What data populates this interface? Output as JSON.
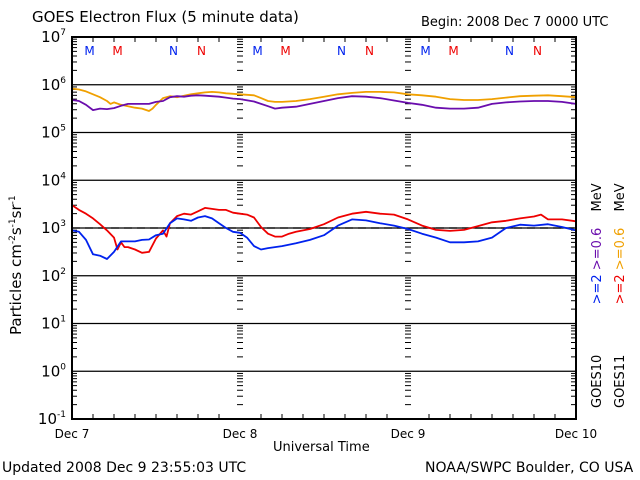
{
  "header": {
    "title": "GOES Electron Flux (5 minute data)",
    "begin": "Begin: 2008 Dec 7 0000 UTC"
  },
  "footer": {
    "updated": "Updated 2008 Dec  9 23:55:03 UTC",
    "source": "NOAA/SWPC Boulder, CO USA"
  },
  "legend": {
    "goes10": {
      "sat": "GOES10",
      "ch1": ">=2",
      "ch2": ">=0.6",
      "unit": "MeV",
      "color1": "#0022ee",
      "color2": "#6a0dad"
    },
    "goes11": {
      "sat": "GOES11",
      "ch1": ">=2",
      "ch2": ">=0.6",
      "unit": "MeV",
      "color1": "#ee0000",
      "color2": "#f0a000"
    }
  },
  "chart_data": {
    "type": "line",
    "title": "GOES Electron Flux (5 minute data)",
    "xlabel": "Universal Time",
    "ylabel": "Particles cm^-2 s^-1 sr^-1",
    "yscale": "log",
    "ylim_exp": [
      -1,
      7
    ],
    "xlim_hours": [
      0,
      72
    ],
    "x_tick_labels": [
      "Dec 7",
      "Dec 8",
      "Dec 9",
      "Dec 10"
    ],
    "y_tick_labels": [
      {
        "base": "10",
        "exp": "7"
      },
      {
        "base": "10",
        "exp": "6"
      },
      {
        "base": "10",
        "exp": "5"
      },
      {
        "base": "10",
        "exp": "4"
      },
      {
        "base": "10",
        "exp": "3"
      },
      {
        "base": "10",
        "exp": "2"
      },
      {
        "base": "10",
        "exp": "1"
      },
      {
        "base": "10",
        "exp": "0"
      },
      {
        "base": "10",
        "exp": "-1"
      }
    ],
    "threshold_exp": 3,
    "mn_markers": [
      {
        "label": "M",
        "hour": 2.5,
        "color": "#0022ee"
      },
      {
        "label": "M",
        "hour": 6.5,
        "color": "#ee0000"
      },
      {
        "label": "N",
        "hour": 14.5,
        "color": "#0022ee"
      },
      {
        "label": "N",
        "hour": 18.5,
        "color": "#ee0000"
      },
      {
        "label": "M",
        "hour": 26.5,
        "color": "#0022ee"
      },
      {
        "label": "M",
        "hour": 30.5,
        "color": "#ee0000"
      },
      {
        "label": "N",
        "hour": 38.5,
        "color": "#0022ee"
      },
      {
        "label": "N",
        "hour": 42.5,
        "color": "#ee0000"
      },
      {
        "label": "M",
        "hour": 50.5,
        "color": "#0022ee"
      },
      {
        "label": "M",
        "hour": 54.5,
        "color": "#ee0000"
      },
      {
        "label": "N",
        "hour": 62.5,
        "color": "#0022ee"
      },
      {
        "label": "N",
        "hour": 66.5,
        "color": "#ee0000"
      }
    ],
    "series": [
      {
        "name": "GOES11 >=0.6 MeV",
        "color": "#f0a000",
        "x": [
          0,
          1,
          2,
          3,
          4,
          5,
          5.5,
          6,
          7,
          8,
          9,
          10,
          11,
          11.5,
          12,
          13,
          14,
          15,
          16,
          17,
          18,
          19,
          20,
          21,
          22,
          23,
          24,
          26,
          27,
          28,
          29,
          30,
          32,
          34,
          36,
          38,
          40,
          42,
          44,
          46,
          48,
          50,
          52,
          54,
          56,
          58,
          60,
          62,
          64,
          66,
          68,
          70,
          72
        ],
        "log_y": [
          5.92,
          5.9,
          5.86,
          5.8,
          5.74,
          5.66,
          5.6,
          5.63,
          5.58,
          5.55,
          5.52,
          5.5,
          5.45,
          5.5,
          5.58,
          5.72,
          5.76,
          5.74,
          5.77,
          5.8,
          5.82,
          5.84,
          5.85,
          5.84,
          5.82,
          5.81,
          5.8,
          5.78,
          5.72,
          5.66,
          5.64,
          5.64,
          5.66,
          5.7,
          5.75,
          5.8,
          5.83,
          5.85,
          5.85,
          5.84,
          5.8,
          5.78,
          5.75,
          5.7,
          5.68,
          5.68,
          5.7,
          5.73,
          5.76,
          5.77,
          5.78,
          5.76,
          5.74
        ]
      },
      {
        "name": "GOES10 >=0.6 MeV",
        "color": "#6a0dad",
        "x": [
          0,
          1,
          2,
          3,
          4,
          5,
          6,
          7,
          8,
          9,
          10,
          11,
          12,
          13,
          14,
          15,
          16,
          17,
          18,
          19,
          20,
          21,
          22,
          23,
          24,
          26,
          28,
          29,
          30,
          32,
          34,
          36,
          38,
          40,
          42,
          44,
          46,
          48,
          50,
          52,
          54,
          56,
          58,
          60,
          62,
          64,
          66,
          68,
          70,
          72
        ],
        "log_y": [
          5.68,
          5.66,
          5.58,
          5.47,
          5.5,
          5.49,
          5.51,
          5.56,
          5.6,
          5.6,
          5.6,
          5.6,
          5.64,
          5.66,
          5.74,
          5.76,
          5.75,
          5.77,
          5.78,
          5.77,
          5.76,
          5.75,
          5.73,
          5.71,
          5.7,
          5.65,
          5.55,
          5.5,
          5.52,
          5.54,
          5.6,
          5.66,
          5.72,
          5.76,
          5.75,
          5.72,
          5.67,
          5.62,
          5.58,
          5.52,
          5.5,
          5.5,
          5.52,
          5.6,
          5.63,
          5.65,
          5.66,
          5.66,
          5.64,
          5.6
        ]
      },
      {
        "name": "GOES11 >=2 MeV",
        "color": "#ee0000",
        "x": [
          0,
          1,
          2,
          3,
          4,
          5,
          6,
          6.5,
          7,
          7.5,
          8,
          9,
          10,
          11,
          12,
          13,
          13.5,
          14,
          15,
          16,
          17,
          18,
          19,
          20,
          21,
          22,
          23,
          24,
          25,
          26,
          27,
          28,
          29,
          30,
          31,
          32,
          34,
          36,
          38,
          40,
          42,
          44,
          46,
          48,
          50,
          52,
          54,
          56,
          58,
          60,
          62,
          64,
          66,
          67,
          68,
          70,
          72
        ],
        "log_y": [
          3.48,
          3.38,
          3.3,
          3.2,
          3.08,
          2.95,
          2.8,
          2.55,
          2.7,
          2.6,
          2.6,
          2.55,
          2.48,
          2.5,
          2.78,
          2.95,
          2.82,
          3.1,
          3.25,
          3.3,
          3.28,
          3.35,
          3.42,
          3.4,
          3.38,
          3.38,
          3.32,
          3.3,
          3.28,
          3.22,
          3.02,
          2.88,
          2.82,
          2.82,
          2.88,
          2.92,
          2.98,
          3.08,
          3.22,
          3.3,
          3.34,
          3.3,
          3.28,
          3.18,
          3.05,
          2.96,
          2.94,
          2.96,
          3.04,
          3.12,
          3.15,
          3.2,
          3.24,
          3.28,
          3.18,
          3.18,
          3.14
        ]
      },
      {
        "name": "GOES10 >=2 MeV",
        "color": "#0022ee",
        "x": [
          0,
          1,
          2,
          3,
          4,
          5,
          6,
          7,
          8,
          9,
          10,
          11,
          12,
          13,
          14,
          15,
          16,
          17,
          18,
          19,
          20,
          21,
          22,
          23,
          24,
          25,
          26,
          27,
          28,
          30,
          32,
          34,
          36,
          38,
          40,
          42,
          44,
          46,
          48,
          50,
          52,
          54,
          56,
          58,
          60,
          62,
          64,
          66,
          68,
          70,
          72
        ],
        "log_y": [
          2.95,
          2.92,
          2.75,
          2.45,
          2.42,
          2.35,
          2.5,
          2.72,
          2.72,
          2.72,
          2.75,
          2.76,
          2.85,
          2.88,
          3.1,
          3.2,
          3.18,
          3.15,
          3.22,
          3.25,
          3.2,
          3.1,
          3.0,
          2.92,
          2.9,
          2.8,
          2.62,
          2.55,
          2.58,
          2.62,
          2.68,
          2.75,
          2.85,
          3.05,
          3.18,
          3.16,
          3.1,
          3.05,
          2.98,
          2.88,
          2.8,
          2.7,
          2.7,
          2.72,
          2.8,
          3.0,
          3.07,
          3.05,
          3.08,
          3.02,
          2.95
        ]
      }
    ]
  }
}
